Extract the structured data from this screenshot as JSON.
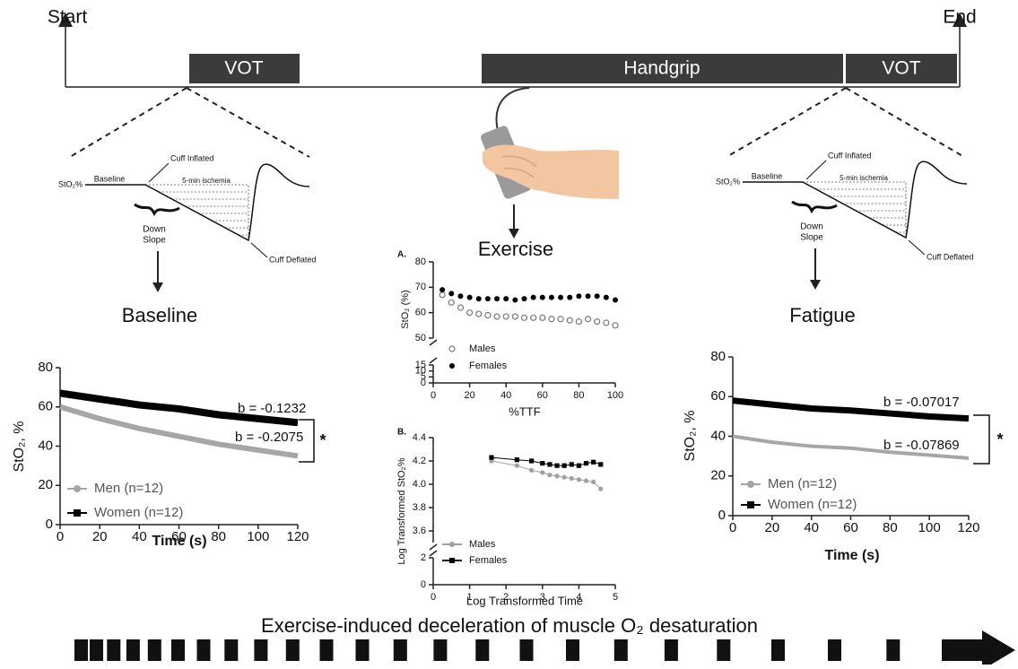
{
  "timeline": {
    "start": "Start",
    "end": "End",
    "phases": [
      "VOT",
      "Handgrip",
      "VOT"
    ]
  },
  "vot_diagrams": [
    {
      "sto2": "StO₂%",
      "baseline": "Baseline",
      "cuff_inflated": "Cuff Inflated",
      "ischemia": "5-min ischemia",
      "down_slope": [
        "Down",
        "Slope"
      ],
      "cuff_deflated": "Cuff Deflated"
    },
    {
      "sto2": "StO₂%",
      "baseline": "Baseline",
      "cuff_inflated": "Cuff Inflated",
      "ischemia": "5-min ischemia",
      "down_slope": [
        "Down",
        "Slope"
      ],
      "cuff_deflated": "Cuff Deflated"
    }
  ],
  "chart_data": [
    {
      "type": "line",
      "title": "Baseline",
      "x": [
        0,
        20,
        40,
        60,
        80,
        100,
        120
      ],
      "xlim": [
        0,
        120
      ],
      "xticks": [
        0,
        20,
        40,
        60,
        80,
        100,
        120
      ],
      "ylim": [
        0,
        80
      ],
      "yticks": [
        0,
        20,
        40,
        60,
        80
      ],
      "x_label": "Time (s)",
      "y_label": "StO₂, %",
      "legend": "lower left",
      "series": [
        {
          "name": "Men (n=12)",
          "color": "#a6a6a6",
          "marker": "circle",
          "values": [
            60,
            54,
            49,
            45,
            41,
            38,
            35
          ]
        },
        {
          "name": "Women (n=12)",
          "color": "#000000",
          "marker": "square",
          "values": [
            67,
            64,
            61,
            59,
            56,
            54,
            52
          ]
        }
      ],
      "annotations": [
        {
          "text": "b = -0.1232"
        },
        {
          "text": "b = -0.2075"
        },
        {
          "text": "*"
        }
      ]
    },
    {
      "type": "scatter",
      "title": "Exercise",
      "panel": "A.",
      "x": [
        5,
        10,
        15,
        20,
        25,
        30,
        35,
        40,
        45,
        50,
        55,
        60,
        65,
        70,
        75,
        80,
        85,
        90,
        95,
        100
      ],
      "xlim": [
        0,
        100
      ],
      "xticks": [
        0,
        20,
        40,
        60,
        80,
        100
      ],
      "ylim": [
        0,
        80
      ],
      "ybreak": [
        15,
        50
      ],
      "yticks": [
        0,
        5,
        10,
        15,
        50,
        60,
        70,
        80
      ],
      "x_label": "%TTF",
      "y_label": "StO₂ (%)",
      "legend": "lower left",
      "series": [
        {
          "name": "Males",
          "color": "#777777",
          "marker": "open-circle",
          "values": [
            67,
            64,
            62,
            60,
            59.5,
            59,
            58.5,
            58.5,
            58.5,
            58,
            58,
            58,
            57.5,
            57.5,
            57,
            56.5,
            57.5,
            56.5,
            56,
            55
          ]
        },
        {
          "name": "Females",
          "color": "#000000",
          "marker": "circle",
          "values": [
            69,
            67.5,
            66.5,
            66,
            65.5,
            65.5,
            65.5,
            65.5,
            65,
            65.5,
            66,
            66,
            66,
            66,
            66,
            66.5,
            66.5,
            66.5,
            66,
            65
          ]
        }
      ]
    },
    {
      "type": "line",
      "panel": "B.",
      "point_markers": true,
      "x": [
        1.6,
        2.3,
        2.7,
        3.0,
        3.2,
        3.4,
        3.6,
        3.8,
        4.0,
        4.2,
        4.4,
        4.6
      ],
      "xlim": [
        0,
        5
      ],
      "xticks": [
        0,
        1,
        2,
        3,
        4,
        5
      ],
      "ylim": [
        0,
        4.4
      ],
      "ybreak": [
        2,
        3.5
      ],
      "yticks": [
        0,
        2,
        3.6,
        3.8,
        {
          "value": 4,
          "label": "4.0"
        },
        4.2,
        4.4
      ],
      "x_label": "Log Transformed Time",
      "y_label": "Log Transformed StO₂%",
      "legend": "lower left",
      "series": [
        {
          "name": "Males",
          "color": "#a0a0a0",
          "marker": "circle",
          "values": [
            4.2,
            4.16,
            4.12,
            4.1,
            4.08,
            4.07,
            4.06,
            4.05,
            4.04,
            4.03,
            4.02,
            3.96
          ]
        },
        {
          "name": "Females",
          "color": "#000000",
          "marker": "square",
          "values": [
            4.23,
            4.21,
            4.2,
            4.18,
            4.17,
            4.16,
            4.16,
            4.17,
            4.16,
            4.18,
            4.19,
            4.17
          ]
        }
      ]
    },
    {
      "type": "line",
      "title": "Fatigue",
      "x": [
        0,
        20,
        40,
        60,
        80,
        100,
        120
      ],
      "xlim": [
        0,
        120
      ],
      "xticks": [
        0,
        20,
        40,
        60,
        80,
        100,
        120
      ],
      "ylim": [
        0,
        80
      ],
      "yticks": [
        0,
        20,
        40,
        60,
        80
      ],
      "x_label": "Time (s)",
      "y_label": "StO₂, %",
      "legend": "lower left",
      "series": [
        {
          "name": "Men (n=12)",
          "color": "#a6a6a6",
          "marker": "circle",
          "values": [
            40,
            37,
            35,
            34,
            32,
            30.5,
            29
          ]
        },
        {
          "name": "Women (n=12)",
          "color": "#000000",
          "marker": "square",
          "values": [
            58,
            56,
            54,
            53,
            51.5,
            50,
            49
          ]
        }
      ],
      "annotations": [
        {
          "text": "b = -0.07017"
        },
        {
          "text": "b = -0.07869"
        },
        {
          "text": "*"
        }
      ]
    }
  ],
  "footer": "Exercise-induced deceleration of muscle O₂ desaturation"
}
